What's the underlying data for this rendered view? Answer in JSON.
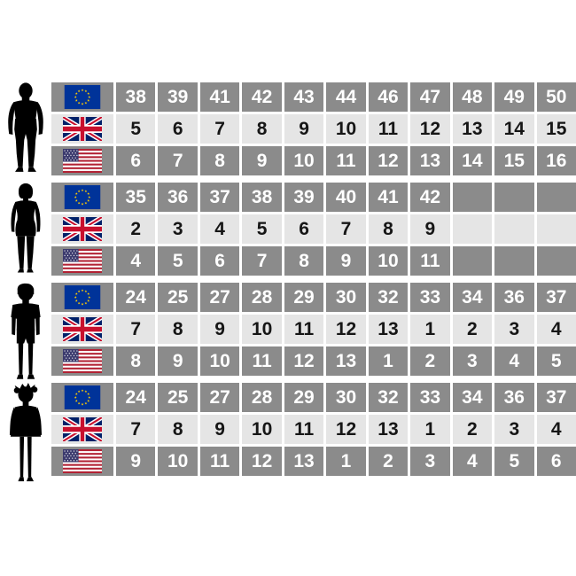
{
  "colors": {
    "cell_dark": "#8b8b8b",
    "cell_light": "#e5e5e5",
    "divider": "#ffffff",
    "text_on_dark": "#ffffff",
    "text_on_light": "#161616",
    "silhouette": "#000000",
    "eu_flag_blue": "#003399",
    "eu_flag_star_yellow": "#ffcc00",
    "uk_flag_blue": "#012169",
    "uk_flag_red": "#c8102e",
    "us_flag_stripe_red": "#b22234",
    "us_flag_canton_blue": "#3c3b6e"
  },
  "chart_data": {
    "type": "table",
    "sections": [
      {
        "person_icon": "man-silhouette",
        "rows": [
          {
            "flag_icon": "eu-flag",
            "shade": "dark",
            "values": [
              "38",
              "39",
              "41",
              "42",
              "43",
              "44",
              "46",
              "47",
              "48",
              "49",
              "50"
            ]
          },
          {
            "flag_icon": "uk-flag",
            "shade": "light",
            "values": [
              "5",
              "6",
              "7",
              "8",
              "9",
              "10",
              "11",
              "12",
              "13",
              "14",
              "15"
            ]
          },
          {
            "flag_icon": "us-flag",
            "shade": "dark",
            "values": [
              "6",
              "7",
              "8",
              "9",
              "10",
              "11",
              "12",
              "13",
              "14",
              "15",
              "16"
            ]
          }
        ]
      },
      {
        "person_icon": "woman-silhouette",
        "rows": [
          {
            "flag_icon": "eu-flag",
            "shade": "dark",
            "values": [
              "35",
              "36",
              "37",
              "38",
              "39",
              "40",
              "41",
              "42",
              "",
              "",
              ""
            ]
          },
          {
            "flag_icon": "uk-flag",
            "shade": "light",
            "values": [
              "2",
              "3",
              "4",
              "5",
              "6",
              "7",
              "8",
              "9",
              "",
              "",
              ""
            ]
          },
          {
            "flag_icon": "us-flag",
            "shade": "dark",
            "values": [
              "4",
              "5",
              "6",
              "7",
              "8",
              "9",
              "10",
              "11",
              "",
              "",
              ""
            ]
          }
        ]
      },
      {
        "person_icon": "boy-silhouette",
        "rows": [
          {
            "flag_icon": "eu-flag",
            "shade": "dark",
            "values": [
              "24",
              "25",
              "27",
              "28",
              "29",
              "30",
              "32",
              "33",
              "34",
              "36",
              "37"
            ]
          },
          {
            "flag_icon": "uk-flag",
            "shade": "light",
            "values": [
              "7",
              "8",
              "9",
              "10",
              "11",
              "12",
              "13",
              "1",
              "2",
              "3",
              "4"
            ]
          },
          {
            "flag_icon": "us-flag",
            "shade": "dark",
            "values": [
              "8",
              "9",
              "10",
              "11",
              "12",
              "13",
              "1",
              "2",
              "3",
              "4",
              "5"
            ]
          }
        ]
      },
      {
        "person_icon": "girl-silhouette",
        "rows": [
          {
            "flag_icon": "eu-flag",
            "shade": "dark",
            "values": [
              "24",
              "25",
              "27",
              "28",
              "29",
              "30",
              "32",
              "33",
              "34",
              "36",
              "37"
            ]
          },
          {
            "flag_icon": "uk-flag",
            "shade": "light",
            "values": [
              "7",
              "8",
              "9",
              "10",
              "11",
              "12",
              "13",
              "1",
              "2",
              "3",
              "4"
            ]
          },
          {
            "flag_icon": "us-flag",
            "shade": "dark",
            "values": [
              "9",
              "10",
              "11",
              "12",
              "13",
              "1",
              "2",
              "3",
              "4",
              "5",
              "6"
            ]
          }
        ]
      }
    ]
  }
}
